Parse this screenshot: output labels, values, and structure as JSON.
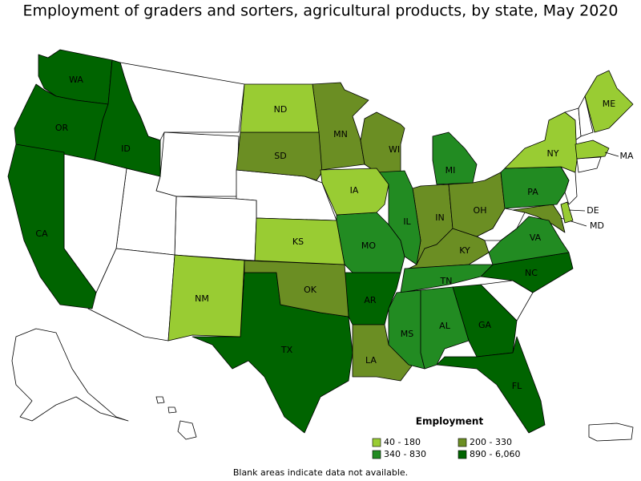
{
  "title": "Employment of graders and sorters, agricultural products, by state, May 2020",
  "legend": {
    "title": "Employment",
    "items": [
      {
        "label": "40 - 180",
        "color": "#99cc33"
      },
      {
        "label": "200 - 330",
        "color": "#6b8e23"
      },
      {
        "label": "340 - 830",
        "color": "#228b22"
      },
      {
        "label": "890 - 6,060",
        "color": "#006400"
      }
    ]
  },
  "states": [
    {
      "label": "WA",
      "color": "#006400"
    },
    {
      "label": "OR",
      "color": "#006400"
    },
    {
      "label": "ID",
      "color": "#006400"
    },
    {
      "label": "CA",
      "color": "#006400"
    },
    {
      "label": "TX",
      "color": "#006400"
    },
    {
      "label": "AR",
      "color": "#006400"
    },
    {
      "label": "GA",
      "color": "#006400"
    },
    {
      "label": "FL",
      "color": "#006400"
    },
    {
      "label": "NC",
      "color": "#006400"
    },
    {
      "label": "MN",
      "color": "#6b8e23"
    },
    {
      "label": "SD",
      "color": "#6b8e23"
    },
    {
      "label": "WI",
      "color": "#6b8e23"
    },
    {
      "label": "OK",
      "color": "#6b8e23"
    },
    {
      "label": "LA",
      "color": "#6b8e23"
    },
    {
      "label": "IN",
      "color": "#6b8e23"
    },
    {
      "label": "KY",
      "color": "#6b8e23"
    },
    {
      "label": "OH",
      "color": "#6b8e23"
    },
    {
      "label": "MD",
      "color": "#6b8e23"
    },
    {
      "label": "MO",
      "color": "#228b22"
    },
    {
      "label": "IL",
      "color": "#228b22"
    },
    {
      "label": "MI",
      "color": "#228b22"
    },
    {
      "label": "TN",
      "color": "#228b22"
    },
    {
      "label": "MS",
      "color": "#228b22"
    },
    {
      "label": "AL",
      "color": "#228b22"
    },
    {
      "label": "PA",
      "color": "#228b22"
    },
    {
      "label": "VA",
      "color": "#228b22"
    },
    {
      "label": "ND",
      "color": "#99cc33"
    },
    {
      "label": "IA",
      "color": "#99cc33"
    },
    {
      "label": "KS",
      "color": "#99cc33"
    },
    {
      "label": "NM",
      "color": "#99cc33"
    },
    {
      "label": "NY",
      "color": "#99cc33"
    },
    {
      "label": "ME",
      "color": "#99cc33"
    },
    {
      "label": "MA",
      "color": "#99cc33"
    },
    {
      "label": "DE",
      "color": "#99cc33"
    }
  ],
  "footnote": "Blank areas indicate data not available."
}
